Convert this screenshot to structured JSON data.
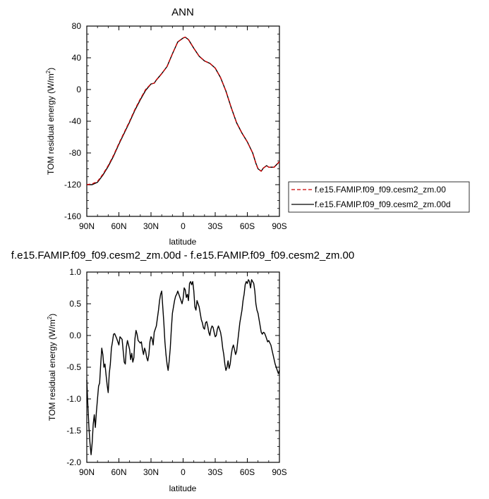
{
  "chart_data": [
    {
      "type": "line",
      "title": "ANN",
      "xlabel": "latitude",
      "ylabel_main": "TOM residual energy (W/m",
      "ylabel_sup": "2",
      "ylabel_close": ")",
      "xlim": [
        90,
        -90
      ],
      "ylim": [
        -160,
        80
      ],
      "x_ticks": [
        90,
        60,
        30,
        0,
        -30,
        -60,
        -90
      ],
      "x_tick_labels": [
        "90N",
        "60N",
        "30N",
        "0",
        "30S",
        "60S",
        "90S"
      ],
      "y_ticks": [
        80,
        40,
        0,
        -40,
        -80,
        -120,
        -160
      ],
      "y_tick_labels": [
        "80",
        "40",
        "0",
        "-40",
        "-80",
        "-120",
        "-160"
      ],
      "legend_position": "right",
      "series": [
        {
          "name": "f.e15.FAMIP.f09_f09.cesm2_zm.00",
          "color": "#cc0000",
          "dash": "dashed",
          "points": [
            [
              90,
              -120
            ],
            [
              85,
              -119
            ],
            [
              80,
              -116
            ],
            [
              75,
              -107
            ],
            [
              70,
              -96
            ],
            [
              65,
              -83
            ],
            [
              60,
              -68
            ],
            [
              55,
              -54
            ],
            [
              50,
              -40
            ],
            [
              45,
              -25
            ],
            [
              40,
              -12
            ],
            [
              35,
              0
            ],
            [
              30,
              7
            ],
            [
              27,
              8
            ],
            [
              25,
              12
            ],
            [
              20,
              20
            ],
            [
              15,
              29
            ],
            [
              10,
              45
            ],
            [
              5,
              60
            ],
            [
              0,
              65
            ],
            [
              -2,
              66
            ],
            [
              -5,
              63
            ],
            [
              -10,
              52
            ],
            [
              -15,
              42
            ],
            [
              -20,
              36
            ],
            [
              -25,
              33
            ],
            [
              -30,
              27
            ],
            [
              -35,
              15
            ],
            [
              -40,
              -2
            ],
            [
              -45,
              -23
            ],
            [
              -50,
              -42
            ],
            [
              -55,
              -55
            ],
            [
              -60,
              -66
            ],
            [
              -65,
              -80
            ],
            [
              -68,
              -93
            ],
            [
              -70,
              -100
            ],
            [
              -73,
              -103
            ],
            [
              -75,
              -99
            ],
            [
              -78,
              -96
            ],
            [
              -80,
              -98
            ],
            [
              -85,
              -98
            ],
            [
              -90,
              -91
            ]
          ]
        },
        {
          "name": "f.e15.FAMIP.f09_f09.cesm2_zm.00d",
          "color": "#000000",
          "dash": "solid",
          "points": [
            [
              90,
              -120
            ],
            [
              85,
              -120
            ],
            [
              80,
              -117
            ],
            [
              75,
              -108
            ],
            [
              70,
              -97
            ],
            [
              65,
              -84
            ],
            [
              60,
              -69
            ],
            [
              55,
              -55
            ],
            [
              50,
              -41
            ],
            [
              45,
              -26
            ],
            [
              40,
              -13
            ],
            [
              35,
              -1
            ],
            [
              30,
              7
            ],
            [
              27,
              8
            ],
            [
              25,
              12
            ],
            [
              20,
              20
            ],
            [
              15,
              29
            ],
            [
              10,
              45
            ],
            [
              5,
              60
            ],
            [
              0,
              65
            ],
            [
              -2,
              66
            ],
            [
              -5,
              63
            ],
            [
              -10,
              52
            ],
            [
              -15,
              42
            ],
            [
              -20,
              36
            ],
            [
              -25,
              33
            ],
            [
              -30,
              27
            ],
            [
              -35,
              15
            ],
            [
              -40,
              -2
            ],
            [
              -45,
              -23
            ],
            [
              -50,
              -42
            ],
            [
              -55,
              -55
            ],
            [
              -60,
              -66
            ],
            [
              -65,
              -80
            ],
            [
              -68,
              -93
            ],
            [
              -70,
              -100
            ],
            [
              -73,
              -103
            ],
            [
              -75,
              -99
            ],
            [
              -78,
              -96
            ],
            [
              -80,
              -98
            ],
            [
              -85,
              -98
            ],
            [
              -90,
              -91
            ]
          ]
        }
      ]
    },
    {
      "type": "line",
      "title": "f.e15.FAMIP.f09_f09.cesm2_zm.00d - f.e15.FAMIP.f09_f09.cesm2_zm.00",
      "xlabel": "latitude",
      "ylabel_main": "TOM residual energy (W/m",
      "ylabel_sup": "2",
      "ylabel_close": ")",
      "xlim": [
        90,
        -90
      ],
      "ylim": [
        -2.0,
        1.0
      ],
      "x_ticks": [
        90,
        60,
        30,
        0,
        -30,
        -60,
        -90
      ],
      "x_tick_labels": [
        "90N",
        "60N",
        "30N",
        "0",
        "30S",
        "60S",
        "90S"
      ],
      "y_ticks": [
        1.0,
        0.5,
        0.0,
        -0.5,
        -1.0,
        -1.5,
        -2.0
      ],
      "y_tick_labels": [
        "1.0",
        "0.5",
        "0.0",
        "-0.5",
        "-1.0",
        "-1.5",
        "-2.0"
      ],
      "series": [
        {
          "color": "#000000",
          "dash": "solid",
          "points": [
            [
              90,
              -0.7
            ],
            [
              89,
              -1.1
            ],
            [
              88,
              -1.45
            ],
            [
              87,
              -1.7
            ],
            [
              86,
              -1.88
            ],
            [
              85,
              -1.7
            ],
            [
              84,
              -1.4
            ],
            [
              83,
              -1.25
            ],
            [
              82,
              -1.45
            ],
            [
              81,
              -1.2
            ],
            [
              80,
              -1.0
            ],
            [
              79,
              -0.8
            ],
            [
              78,
              -0.75
            ],
            [
              77,
              -0.45
            ],
            [
              76,
              -0.2
            ],
            [
              75,
              -0.3
            ],
            [
              74,
              -0.5
            ],
            [
              73,
              -0.45
            ],
            [
              72,
              -0.62
            ],
            [
              71,
              -0.78
            ],
            [
              70,
              -0.9
            ],
            [
              69,
              -0.6
            ],
            [
              68,
              -0.45
            ],
            [
              67,
              -0.2
            ],
            [
              66,
              -0.1
            ],
            [
              65,
              0.02
            ],
            [
              64,
              0.03
            ],
            [
              62,
              -0.05
            ],
            [
              60,
              -0.15
            ],
            [
              59,
              -0.02
            ],
            [
              57,
              -0.06
            ],
            [
              55,
              -0.42
            ],
            [
              54,
              -0.45
            ],
            [
              53,
              -0.18
            ],
            [
              52,
              -0.08
            ],
            [
              50,
              -0.22
            ],
            [
              49,
              -0.38
            ],
            [
              48,
              -0.28
            ],
            [
              47,
              -0.42
            ],
            [
              46,
              -0.35
            ],
            [
              45,
              -0.05
            ],
            [
              44,
              0.08
            ],
            [
              43,
              0.02
            ],
            [
              42,
              -0.08
            ],
            [
              40,
              -0.12
            ],
            [
              39,
              -0.1
            ],
            [
              38,
              -0.22
            ],
            [
              37,
              -0.3
            ],
            [
              36,
              -0.2
            ],
            [
              35,
              -0.25
            ],
            [
              34,
              -0.35
            ],
            [
              33,
              -0.4
            ],
            [
              32,
              -0.3
            ],
            [
              31,
              -0.1
            ],
            [
              30,
              -0.02
            ],
            [
              29,
              -0.05
            ],
            [
              28,
              -0.15
            ],
            [
              27,
              0.05
            ],
            [
              25,
              0.15
            ],
            [
              23,
              0.4
            ],
            [
              22,
              0.55
            ],
            [
              21,
              0.65
            ],
            [
              20,
              0.7
            ],
            [
              19,
              0.45
            ],
            [
              18,
              0.2
            ],
            [
              17,
              -0.1
            ],
            [
              16,
              -0.3
            ],
            [
              15,
              -0.45
            ],
            [
              14,
              -0.55
            ],
            [
              13,
              -0.4
            ],
            [
              12,
              -0.2
            ],
            [
              11,
              0.1
            ],
            [
              10,
              0.35
            ],
            [
              9,
              0.45
            ],
            [
              8,
              0.55
            ],
            [
              7,
              0.62
            ],
            [
              6,
              0.65
            ],
            [
              5,
              0.7
            ],
            [
              4,
              0.65
            ],
            [
              3,
              0.6
            ],
            [
              2,
              0.55
            ],
            [
              1,
              0.5
            ],
            [
              0,
              0.58
            ],
            [
              -1,
              0.75
            ],
            [
              -2,
              0.72
            ],
            [
              -3,
              0.6
            ],
            [
              -4,
              0.65
            ],
            [
              -5,
              0.55
            ],
            [
              -6,
              0.82
            ],
            [
              -7,
              0.85
            ],
            [
              -8,
              0.8
            ],
            [
              -9,
              0.85
            ],
            [
              -10,
              0.7
            ],
            [
              -11,
              0.45
            ],
            [
              -12,
              0.4
            ],
            [
              -13,
              0.55
            ],
            [
              -14,
              0.5
            ],
            [
              -15,
              0.45
            ],
            [
              -16,
              0.35
            ],
            [
              -17,
              0.25
            ],
            [
              -18,
              0.2
            ],
            [
              -19,
              0.12
            ],
            [
              -20,
              0.1
            ],
            [
              -21,
              0.2
            ],
            [
              -22,
              0.22
            ],
            [
              -23,
              0.15
            ],
            [
              -24,
              0.05
            ],
            [
              -25,
              0.0
            ],
            [
              -26,
              0.1
            ],
            [
              -27,
              0.15
            ],
            [
              -28,
              0.13
            ],
            [
              -29,
              0.05
            ],
            [
              -30,
              -0.02
            ],
            [
              -31,
              0.0
            ],
            [
              -32,
              0.1
            ],
            [
              -33,
              0.15
            ],
            [
              -34,
              0.1
            ],
            [
              -35,
              0.05
            ],
            [
              -36,
              -0.05
            ],
            [
              -37,
              -0.2
            ],
            [
              -38,
              -0.3
            ],
            [
              -39,
              -0.45
            ],
            [
              -40,
              -0.55
            ],
            [
              -41,
              -0.5
            ],
            [
              -42,
              -0.4
            ],
            [
              -43,
              -0.52
            ],
            [
              -44,
              -0.45
            ],
            [
              -45,
              -0.3
            ],
            [
              -46,
              -0.2
            ],
            [
              -47,
              -0.15
            ],
            [
              -48,
              -0.22
            ],
            [
              -49,
              -0.3
            ],
            [
              -50,
              -0.25
            ],
            [
              -51,
              -0.1
            ],
            [
              -52,
              0.05
            ],
            [
              -53,
              0.2
            ],
            [
              -54,
              0.3
            ],
            [
              -55,
              0.4
            ],
            [
              -56,
              0.55
            ],
            [
              -57,
              0.65
            ],
            [
              -58,
              0.8
            ],
            [
              -59,
              0.85
            ],
            [
              -60,
              0.82
            ],
            [
              -61,
              0.88
            ],
            [
              -62,
              0.85
            ],
            [
              -63,
              0.75
            ],
            [
              -64,
              0.88
            ],
            [
              -65,
              0.85
            ],
            [
              -66,
              0.82
            ],
            [
              -67,
              0.7
            ],
            [
              -68,
              0.5
            ],
            [
              -69,
              0.4
            ],
            [
              -70,
              0.35
            ],
            [
              -71,
              0.25
            ],
            [
              -72,
              0.15
            ],
            [
              -73,
              0.05
            ],
            [
              -74,
              0.02
            ],
            [
              -75,
              0.05
            ],
            [
              -76,
              0.04
            ],
            [
              -77,
              0.0
            ],
            [
              -78,
              -0.05
            ],
            [
              -79,
              -0.1
            ],
            [
              -80,
              -0.08
            ],
            [
              -82,
              -0.15
            ],
            [
              -84,
              -0.3
            ],
            [
              -86,
              -0.45
            ],
            [
              -88,
              -0.55
            ],
            [
              -89,
              -0.6
            ],
            [
              -90,
              -0.55
            ]
          ]
        }
      ]
    }
  ]
}
